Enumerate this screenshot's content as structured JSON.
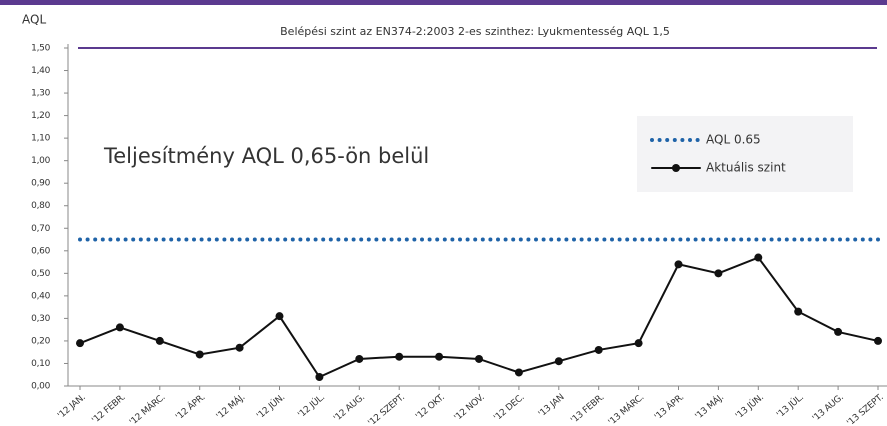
{
  "chart_data": {
    "type": "line",
    "y_label": "AQL",
    "annotation": "Teljesítmény AQL 0,65-ön belül",
    "reference_line": {
      "value": 1.5,
      "label": "Belépési szint az EN374-2:2003 2-es szinthez:  Lyukmentesség AQL 1,5",
      "color": "#5b3a8f"
    },
    "categories": [
      "'12 JAN.",
      "'12 FEBR.",
      "'12 MÁRC.",
      "'12 ÁPR.",
      "'12 MÁJ.",
      "'12 JÚN.",
      "'12 JÚL.",
      "'12 AUG.",
      "'12 SZEPT.",
      "'12 OKT.",
      "'12 NOV.",
      "'12 DEC.",
      "'13 JAN",
      "'13 FEBR.",
      "'13 MÁRC.",
      "'13 ÁPR.",
      "'13 MÁJ.",
      "'13 JÚN.",
      "'13 JÚL.",
      "'13 AUG.",
      "'13 SZEPT."
    ],
    "series": [
      {
        "name": "AQL 0.65",
        "color": "#1f63a8",
        "style": "dotted",
        "values": [
          0.65,
          0.65,
          0.65,
          0.65,
          0.65,
          0.65,
          0.65,
          0.65,
          0.65,
          0.65,
          0.65,
          0.65,
          0.65,
          0.65,
          0.65,
          0.65,
          0.65,
          0.65,
          0.65,
          0.65,
          0.65
        ]
      },
      {
        "name": "Aktuális szint",
        "color": "#111111",
        "style": "solid",
        "values": [
          0.19,
          0.26,
          0.2,
          0.14,
          0.17,
          0.31,
          0.04,
          0.12,
          0.13,
          0.13,
          0.12,
          0.06,
          0.11,
          0.16,
          0.19,
          0.54,
          0.5,
          0.57,
          0.33,
          0.24,
          0.2
        ]
      }
    ],
    "ylim": [
      0,
      1.5
    ],
    "yticks": [
      {
        "value": 0,
        "label": "0,00"
      },
      {
        "value": 0.1,
        "label": "0,10"
      },
      {
        "value": 0.2,
        "label": "0,20"
      },
      {
        "value": 0.3,
        "label": "0,30"
      },
      {
        "value": 0.4,
        "label": "0,40"
      },
      {
        "value": 0.5,
        "label": "0,50"
      },
      {
        "value": 0.6,
        "label": "0,60"
      },
      {
        "value": 0.7,
        "label": "0,70"
      },
      {
        "value": 0.8,
        "label": "0,80"
      },
      {
        "value": 0.9,
        "label": "0,90"
      },
      {
        "value": 1.0,
        "label": "1,00"
      },
      {
        "value": 1.1,
        "label": "1,10"
      },
      {
        "value": 1.2,
        "label": "1,20"
      },
      {
        "value": 1.3,
        "label": "1,30"
      },
      {
        "value": 1.4,
        "label": "1,40"
      },
      {
        "value": 1.5,
        "label": "1,50"
      }
    ],
    "legend": "upper right"
  }
}
